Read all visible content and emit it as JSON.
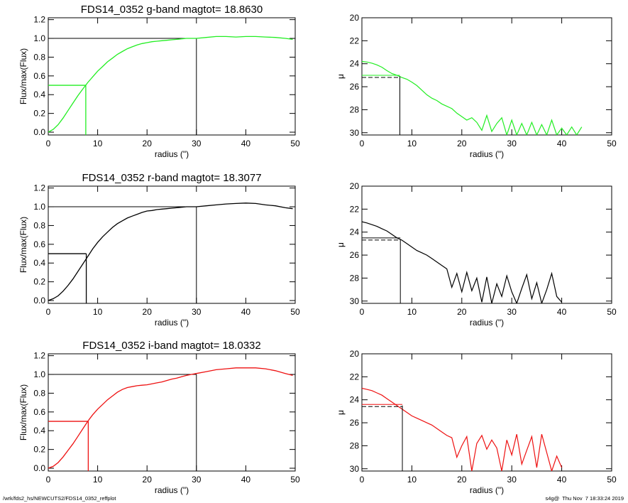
{
  "footer": {
    "left": "/wrk/fds2_hs/NEWCUTS2/FDS14_0352_reffplot",
    "right": "s4g@  Thu Nov  7 18:33:24 2019"
  },
  "colors": {
    "g": "#22ee22",
    "r": "#000000",
    "i": "#ee1111",
    "axis": "#000000"
  },
  "chart_data": [
    {
      "id": "g-growth",
      "type": "line",
      "title": "FDS14_0352 g-band  magtot=      18.8630",
      "xlabel": "radius (\")",
      "ylabel": "Flux/max(Flux)",
      "xlim": [
        0,
        50
      ],
      "ylim": [
        -0.03,
        1.22
      ],
      "xticks": [
        "0",
        "10",
        "20",
        "30",
        "40",
        "50"
      ],
      "yticks": [
        "0.0",
        "0.2",
        "0.4",
        "0.6",
        "0.8",
        "1.0",
        "1.2"
      ],
      "color": "#22ee22",
      "series": [
        {
          "x": [
            0,
            1,
            2,
            3,
            4,
            5,
            6,
            7,
            8,
            9,
            10,
            11,
            12,
            13,
            14,
            15,
            16,
            17,
            18,
            19,
            20,
            21,
            22,
            23,
            24,
            25,
            26,
            27,
            28,
            29,
            30,
            32,
            34,
            36,
            38,
            40,
            42,
            44,
            46,
            48,
            49.5
          ],
          "y": [
            0.0,
            0.03,
            0.08,
            0.15,
            0.23,
            0.31,
            0.39,
            0.46,
            0.53,
            0.59,
            0.65,
            0.7,
            0.75,
            0.79,
            0.83,
            0.86,
            0.89,
            0.91,
            0.93,
            0.945,
            0.955,
            0.965,
            0.97,
            0.975,
            0.98,
            0.985,
            0.99,
            0.995,
            1.0,
            1.0,
            1.0,
            1.01,
            1.02,
            1.02,
            1.015,
            1.02,
            1.02,
            1.015,
            1.01,
            1.0,
            0.99
          ]
        }
      ],
      "hline": {
        "y": 1.0,
        "x0": 0,
        "x1": 30
      },
      "vline": {
        "x": 30,
        "y0": -0.03,
        "y1": 1.0
      },
      "half": {
        "x": 7.6,
        "y": 0.5
      }
    },
    {
      "id": "g-profile",
      "type": "line",
      "title": "",
      "xlabel": "radius (\")",
      "ylabel": "μ",
      "xlim": [
        0,
        50
      ],
      "ylim": [
        30.2,
        20
      ],
      "reversed": true,
      "xticks": [
        "0",
        "10",
        "20",
        "30",
        "40",
        "50"
      ],
      "yticks": [
        "20",
        "22",
        "24",
        "26",
        "28",
        "30"
      ],
      "color": "#22ee22",
      "series": [
        {
          "x": [
            0,
            1,
            2,
            3,
            4,
            5,
            6,
            7,
            8,
            9,
            10,
            11,
            12,
            13,
            14,
            15,
            16,
            17,
            18,
            19,
            20,
            21,
            22,
            23,
            24,
            25,
            26,
            27,
            28,
            29,
            30,
            31,
            32,
            33,
            34,
            35,
            36,
            37,
            38,
            39,
            40,
            41,
            42,
            43,
            44
          ],
          "y": [
            23.8,
            23.85,
            23.95,
            24.1,
            24.3,
            24.6,
            24.85,
            25.0,
            25.2,
            25.35,
            25.6,
            25.9,
            26.3,
            26.7,
            27.0,
            27.2,
            27.5,
            27.7,
            27.9,
            28.3,
            28.6,
            28.9,
            28.7,
            29.1,
            29.8,
            28.5,
            29.9,
            29.2,
            28.7,
            30.2,
            28.9,
            30.2,
            29.2,
            30.2,
            29.1,
            30.2,
            29.3,
            30.2,
            28.9,
            30.2,
            29.6,
            30.2,
            29.5,
            30.2,
            29.5
          ]
        }
      ],
      "mu_half": 25.1,
      "r_half": 7.6
    },
    {
      "id": "r-growth",
      "type": "line",
      "title": "FDS14_0352 r-band  magtot=      18.3077",
      "xlabel": "radius (\")",
      "ylabel": "Flux/max(Flux)",
      "xlim": [
        0,
        50
      ],
      "ylim": [
        -0.03,
        1.22
      ],
      "xticks": [
        "0",
        "10",
        "20",
        "30",
        "40",
        "50"
      ],
      "yticks": [
        "0.0",
        "0.2",
        "0.4",
        "0.6",
        "0.8",
        "1.0",
        "1.2"
      ],
      "color": "#000000",
      "series": [
        {
          "x": [
            0,
            1,
            2,
            3,
            4,
            5,
            6,
            7,
            8,
            9,
            10,
            11,
            12,
            13,
            14,
            15,
            16,
            17,
            18,
            19,
            20,
            21,
            22,
            23,
            24,
            25,
            26,
            27,
            28,
            29,
            30,
            32,
            34,
            36,
            38,
            40,
            42,
            44,
            46,
            48,
            49.5
          ],
          "y": [
            0.0,
            0.02,
            0.05,
            0.1,
            0.16,
            0.23,
            0.31,
            0.39,
            0.47,
            0.55,
            0.62,
            0.68,
            0.73,
            0.78,
            0.82,
            0.85,
            0.88,
            0.9,
            0.92,
            0.94,
            0.955,
            0.96,
            0.97,
            0.975,
            0.98,
            0.985,
            0.99,
            0.995,
            1.0,
            1.0,
            1.0,
            1.01,
            1.02,
            1.03,
            1.035,
            1.04,
            1.035,
            1.02,
            1.01,
            0.99,
            0.98
          ]
        }
      ],
      "hline": {
        "y": 1.0,
        "x0": 0,
        "x1": 30
      },
      "vline": {
        "x": 30,
        "y0": -0.03,
        "y1": 1.0
      },
      "half": {
        "x": 7.7,
        "y": 0.5
      }
    },
    {
      "id": "r-profile",
      "type": "line",
      "title": "",
      "xlabel": "radius (\")",
      "ylabel": "μ",
      "xlim": [
        0,
        50
      ],
      "ylim": [
        30.2,
        20
      ],
      "reversed": true,
      "xticks": [
        "0",
        "10",
        "20",
        "30",
        "40",
        "50"
      ],
      "yticks": [
        "20",
        "22",
        "24",
        "26",
        "28",
        "30"
      ],
      "color": "#000000",
      "series": [
        {
          "x": [
            0,
            1,
            2,
            3,
            4,
            5,
            6,
            7,
            8,
            9,
            10,
            11,
            12,
            13,
            14,
            15,
            16,
            17,
            18,
            19,
            20,
            21,
            22,
            23,
            24,
            25,
            26,
            27,
            28,
            29,
            30,
            31,
            32,
            33,
            34,
            35,
            36,
            37,
            38,
            39,
            40
          ],
          "y": [
            23.1,
            23.2,
            23.35,
            23.5,
            23.7,
            23.9,
            24.2,
            24.5,
            24.7,
            25.0,
            25.3,
            25.6,
            25.8,
            26.0,
            26.3,
            26.6,
            26.9,
            27.2,
            28.8,
            27.6,
            29.2,
            27.5,
            29.1,
            28.0,
            30.1,
            27.9,
            30.2,
            28.5,
            29.6,
            27.8,
            29.2,
            30.2,
            28.9,
            27.7,
            29.8,
            28.4,
            30.2,
            29.0,
            27.6,
            29.6,
            30.1
          ]
        }
      ],
      "mu_half": 24.6,
      "r_half": 7.7
    },
    {
      "id": "i-growth",
      "type": "line",
      "title": "FDS14_0352 i-band  magtot=      18.0332",
      "xlabel": "radius (\")",
      "ylabel": "Flux/max(Flux)",
      "xlim": [
        0,
        50
      ],
      "ylim": [
        -0.03,
        1.22
      ],
      "xticks": [
        "0",
        "10",
        "20",
        "30",
        "40",
        "50"
      ],
      "yticks": [
        "0.0",
        "0.2",
        "0.4",
        "0.6",
        "0.8",
        "1.0",
        "1.2"
      ],
      "color": "#ee1111",
      "series": [
        {
          "x": [
            0,
            1,
            2,
            3,
            4,
            5,
            6,
            7,
            8,
            9,
            10,
            11,
            12,
            13,
            14,
            15,
            16,
            17,
            18,
            19,
            20,
            21,
            22,
            23,
            24,
            25,
            26,
            27,
            28,
            29,
            30,
            32,
            34,
            36,
            38,
            40,
            42,
            44,
            46,
            48,
            49.5
          ],
          "y": [
            0.0,
            0.02,
            0.06,
            0.12,
            0.19,
            0.26,
            0.34,
            0.42,
            0.5,
            0.57,
            0.63,
            0.68,
            0.73,
            0.77,
            0.81,
            0.84,
            0.86,
            0.87,
            0.88,
            0.885,
            0.89,
            0.9,
            0.91,
            0.92,
            0.935,
            0.95,
            0.96,
            0.975,
            0.99,
            1.0,
            1.01,
            1.03,
            1.05,
            1.06,
            1.07,
            1.07,
            1.07,
            1.06,
            1.04,
            1.01,
            0.99
          ]
        }
      ],
      "hline": {
        "y": 1.0,
        "x0": 0,
        "x1": 30
      },
      "vline": {
        "x": 30,
        "y0": -0.03,
        "y1": 1.0
      },
      "half": {
        "x": 8.1,
        "y": 0.5
      }
    },
    {
      "id": "i-profile",
      "type": "line",
      "title": "",
      "xlabel": "radius (\")",
      "ylabel": "μ",
      "xlim": [
        0,
        50
      ],
      "ylim": [
        30.2,
        20
      ],
      "reversed": true,
      "xticks": [
        "0",
        "10",
        "20",
        "30",
        "40",
        "50"
      ],
      "yticks": [
        "20",
        "22",
        "24",
        "26",
        "28",
        "30"
      ],
      "color": "#ee1111",
      "series": [
        {
          "x": [
            0,
            1,
            2,
            3,
            4,
            5,
            6,
            7,
            8,
            9,
            10,
            11,
            12,
            13,
            14,
            15,
            16,
            17,
            18,
            19,
            20,
            21,
            22,
            23,
            24,
            25,
            26,
            27,
            28,
            29,
            30,
            31,
            32,
            33,
            34,
            35,
            36,
            37,
            38,
            39,
            40
          ],
          "y": [
            23.0,
            23.1,
            23.2,
            23.4,
            23.6,
            23.9,
            24.2,
            24.5,
            24.8,
            25.1,
            25.4,
            25.6,
            25.8,
            26.0,
            26.2,
            26.5,
            26.8,
            27.1,
            27.3,
            29.0,
            28.0,
            27.2,
            30.2,
            27.8,
            27.1,
            28.3,
            27.5,
            28.2,
            30.2,
            27.5,
            28.8,
            27.0,
            29.6,
            28.4,
            27.2,
            29.9,
            27.0,
            28.6,
            30.2,
            28.9,
            29.9
          ]
        }
      ],
      "mu_half": 24.5,
      "r_half": 8.1
    }
  ]
}
